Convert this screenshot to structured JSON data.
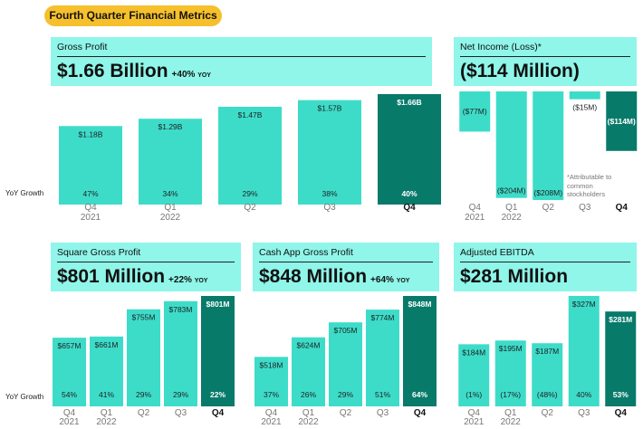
{
  "banner": "Fourth Quarter Financial Metrics",
  "yoy_label": "YoY Growth",
  "colors": {
    "bar": "#3ddcc9",
    "highlight": "#087a6a",
    "header": "#8ff6e9",
    "pill": "#f6c02c"
  },
  "panels": [
    {
      "id": "gross-profit",
      "label": "Gross Profit",
      "headline": "$1.66 Billion",
      "yoy": "+40%",
      "yoy_unit": "YOY"
    },
    {
      "id": "net-income",
      "label": "Net Income (Loss)*",
      "headline": "($114 Million)",
      "yoy": "",
      "yoy_unit": "",
      "footnote": [
        "*Attributable to",
        "common",
        "stockholders"
      ]
    },
    {
      "id": "square-gp",
      "label": "Square Gross Profit",
      "headline": "$801 Million",
      "yoy": "+22%",
      "yoy_unit": "YOY"
    },
    {
      "id": "cashapp-gp",
      "label": "Cash App Gross Profit",
      "headline": "$848 Million",
      "yoy": "+64%",
      "yoy_unit": "YOY"
    },
    {
      "id": "adj-ebitda",
      "label": "Adjusted EBITDA",
      "headline": "$281 Million",
      "yoy": "",
      "yoy_unit": ""
    }
  ],
  "chart_data": [
    {
      "id": "gross-profit",
      "type": "bar",
      "unit": "$B",
      "categories": [
        "Q4 2021",
        "Q1 2022",
        "Q2",
        "Q3",
        "Q4"
      ],
      "values": [
        1.18,
        1.29,
        1.47,
        1.57,
        1.66
      ],
      "labels": [
        "$1.18B",
        "$1.29B",
        "$1.47B",
        "$1.57B",
        "$1.66B"
      ],
      "growth": [
        "47%",
        "34%",
        "29%",
        "38%",
        "40%"
      ]
    },
    {
      "id": "net-income",
      "type": "bar",
      "unit": "$M",
      "categories": [
        "Q4 2021",
        "Q1 2022",
        "Q2",
        "Q3",
        "Q4"
      ],
      "values": [
        -77,
        -204,
        -208,
        -15,
        -114
      ],
      "labels": [
        "($77M)",
        "($204M)",
        "($208M)",
        "($15M)",
        "($114M)"
      ]
    },
    {
      "id": "square-gp",
      "type": "bar",
      "unit": "$M",
      "categories": [
        "Q4 2021",
        "Q1 2022",
        "Q2",
        "Q3",
        "Q4"
      ],
      "values": [
        657,
        661,
        755,
        783,
        801
      ],
      "labels": [
        "$657M",
        "$661M",
        "$755M",
        "$783M",
        "$801M"
      ],
      "growth": [
        "54%",
        "41%",
        "29%",
        "29%",
        "22%"
      ]
    },
    {
      "id": "cashapp-gp",
      "type": "bar",
      "unit": "$M",
      "categories": [
        "Q4 2021",
        "Q1 2022",
        "Q2",
        "Q3",
        "Q4"
      ],
      "values": [
        518,
        624,
        705,
        774,
        848
      ],
      "labels": [
        "$518M",
        "$624M",
        "$705M",
        "$774M",
        "$848M"
      ],
      "growth": [
        "37%",
        "26%",
        "29%",
        "51%",
        "64%"
      ]
    },
    {
      "id": "adj-ebitda",
      "type": "bar",
      "unit": "$M",
      "categories": [
        "Q4 2021",
        "Q1 2022",
        "Q2",
        "Q3",
        "Q4"
      ],
      "values": [
        184,
        195,
        187,
        327,
        281
      ],
      "labels": [
        "$184M",
        "$195M",
        "$187M",
        "$327M",
        "$281M"
      ],
      "growth": [
        "(1%)",
        "(17%)",
        "(48%)",
        "40%",
        "53%"
      ]
    }
  ]
}
